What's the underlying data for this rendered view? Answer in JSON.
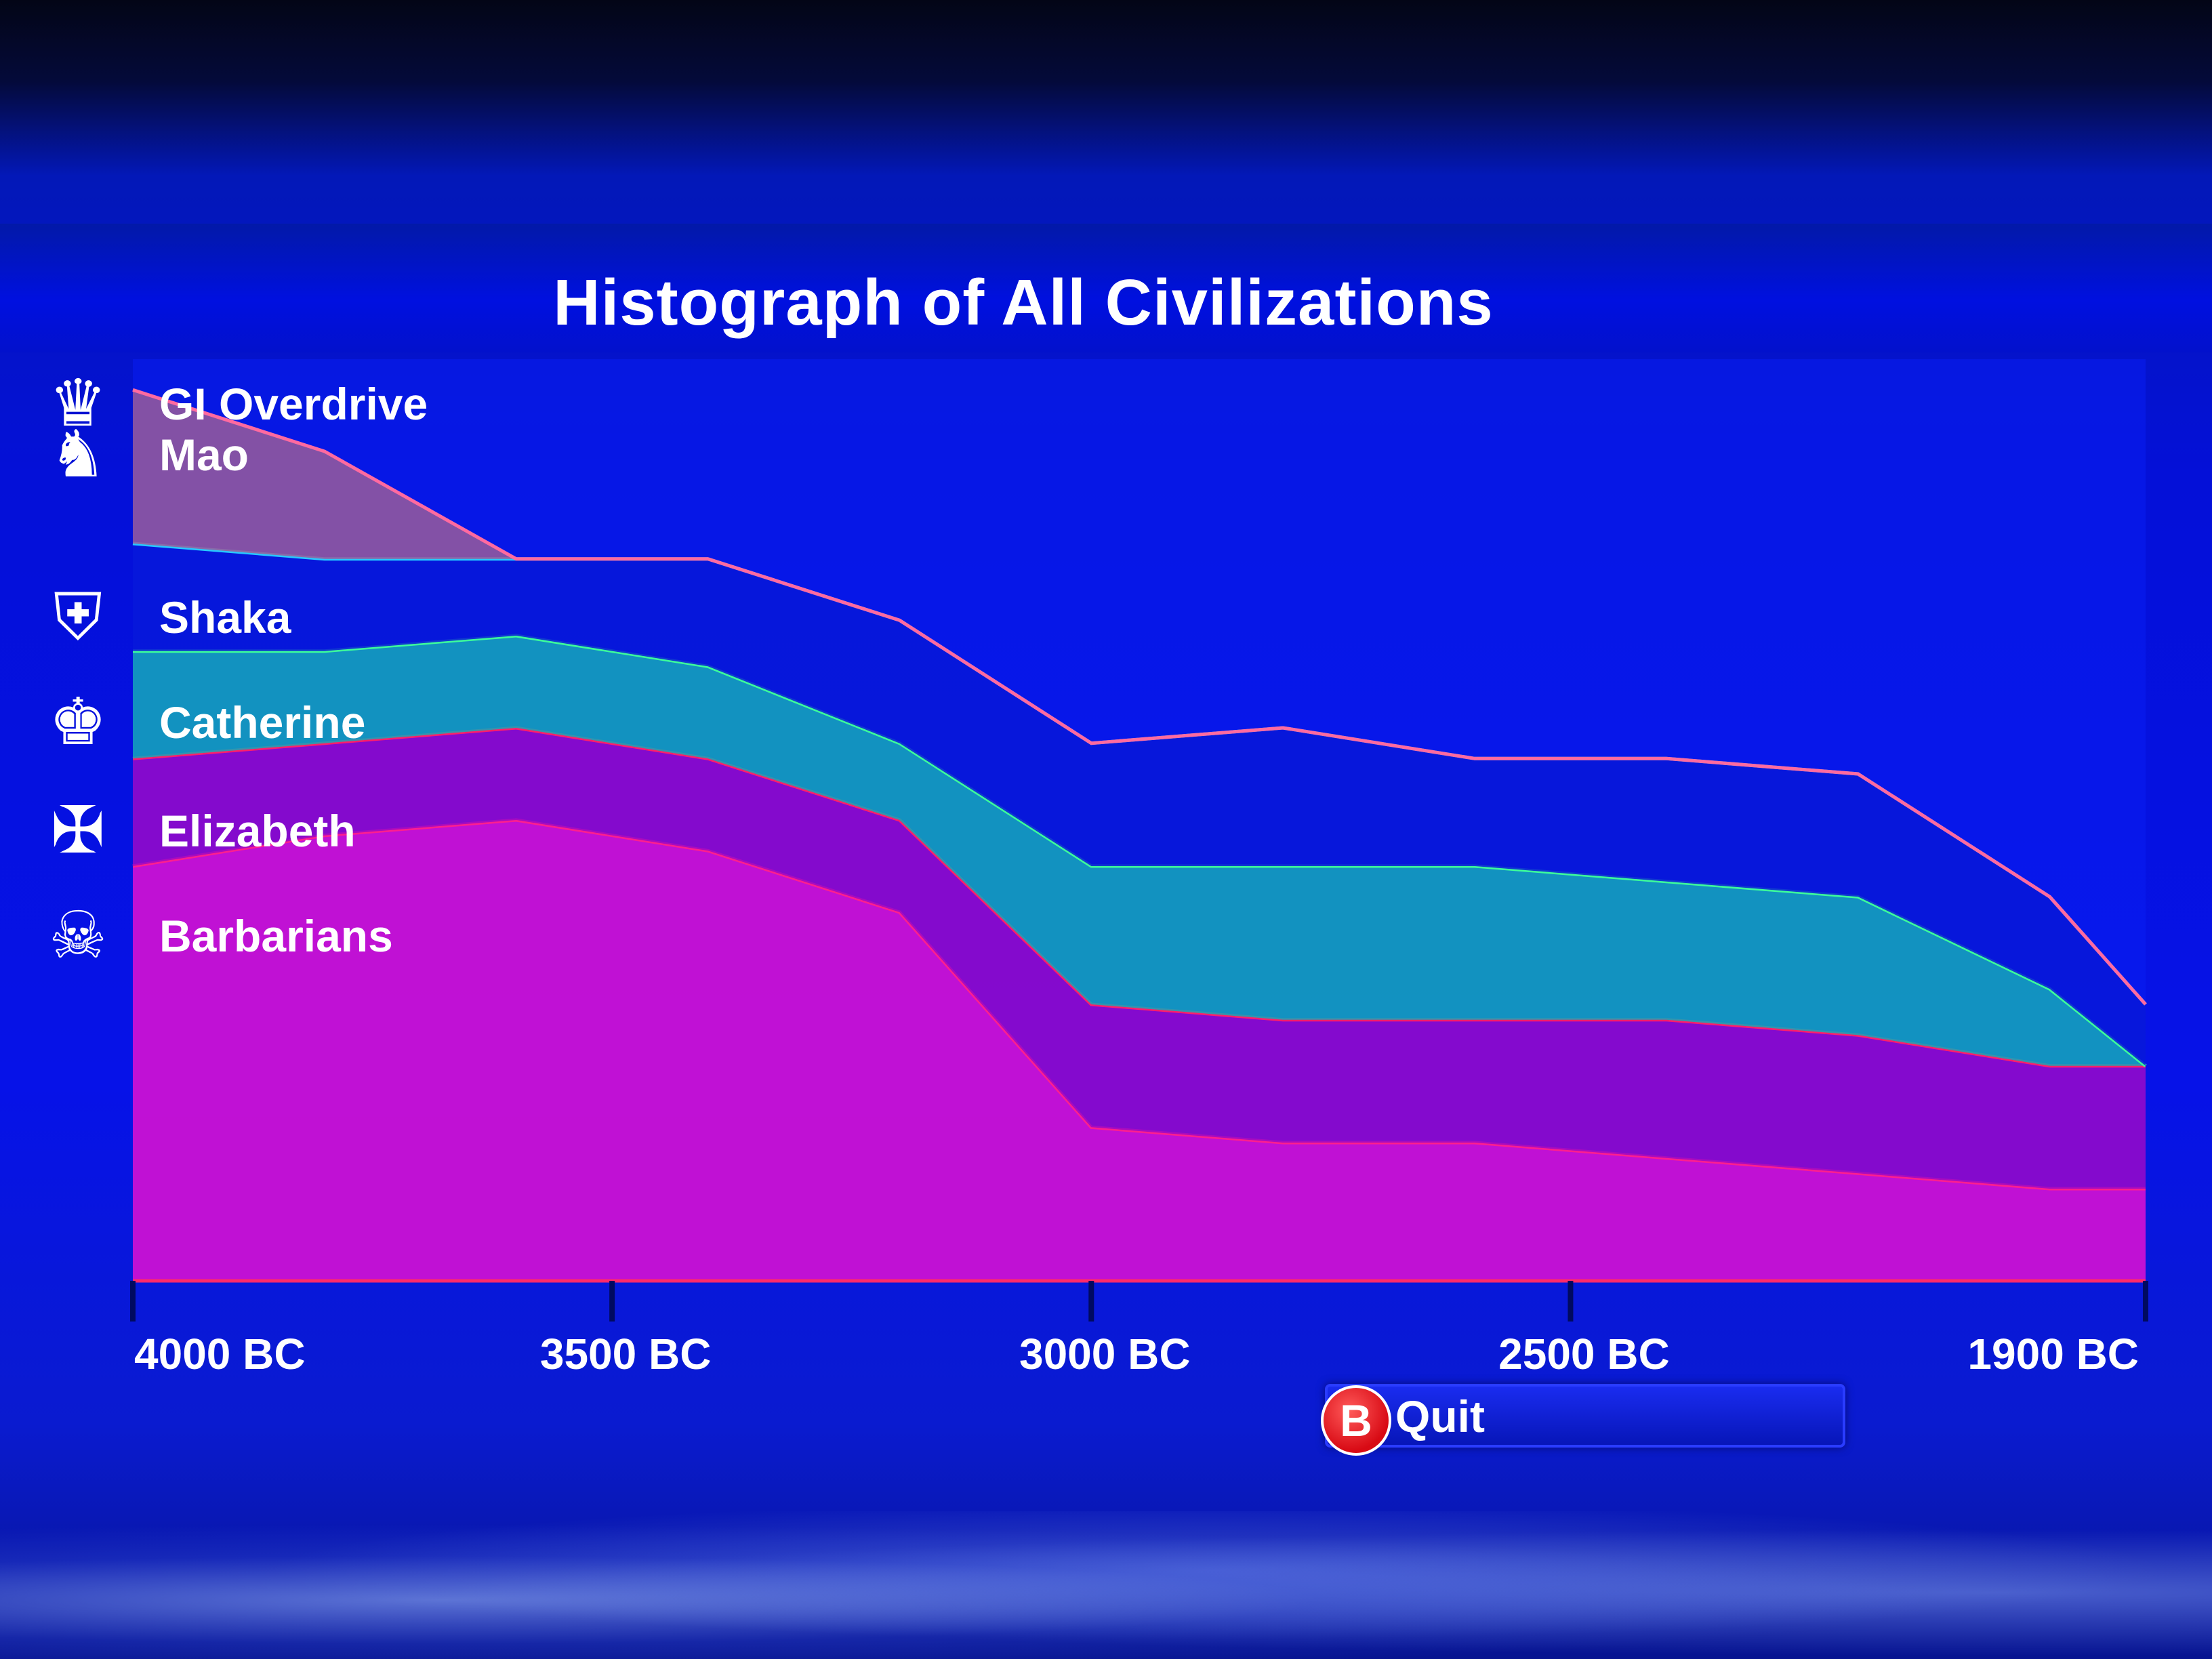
{
  "title": "Histograph of All Civilizations",
  "legend": [
    {
      "label": "GI Overdrive",
      "icon": "eagle-emblem-icon"
    },
    {
      "label": "Mao",
      "icon": "dragon-emblem-icon"
    },
    {
      "label": "Shaka",
      "icon": "shield-emblem-icon"
    },
    {
      "label": "Catherine",
      "icon": "double-eagle-emblem-icon"
    },
    {
      "label": "Elizabeth",
      "icon": "cross-shield-emblem-icon"
    },
    {
      "label": "Barbarians",
      "icon": "skull-emblem-icon"
    }
  ],
  "quit_button": {
    "key": "B",
    "label": "Quit"
  },
  "chart_data": {
    "type": "area",
    "stacked": true,
    "title": "Histograph of All Civilizations",
    "x": [
      -4000,
      -3800,
      -3600,
      -3400,
      -3200,
      -3000,
      -2800,
      -2600,
      -2400,
      -2200,
      -2000,
      -1900
    ],
    "x_tick_labels": [
      "4000 BC",
      "3500 BC",
      "3000 BC",
      "2500 BC",
      "1900 BC"
    ],
    "x_ticks": [
      -4000,
      -3500,
      -3000,
      -2500,
      -1900
    ],
    "series": [
      {
        "name": "Barbarians",
        "color": "#ff1f8e",
        "fill": "#e010d0",
        "values": [
          27,
          29,
          30,
          28,
          24,
          10,
          9,
          9,
          8,
          7,
          6,
          6
        ]
      },
      {
        "name": "Elizabeth",
        "color": "#ff1f6a",
        "fill": "#9a08c8",
        "values": [
          7,
          6,
          6,
          6,
          6,
          8,
          8,
          8,
          9,
          9,
          8,
          8
        ]
      },
      {
        "name": "Catherine",
        "color": "#3dff9a",
        "fill": "#14a8b8",
        "values": [
          7,
          6,
          6,
          6,
          5,
          9,
          10,
          10,
          9,
          9,
          5,
          0
        ]
      },
      {
        "name": "Shaka",
        "color": "#28c8ff",
        "fill": "#0718d8",
        "values": [
          7,
          6,
          5,
          7,
          8,
          8,
          9,
          7,
          8,
          8,
          6,
          4
        ]
      },
      {
        "name": "Mao",
        "color": "#ff6aa0",
        "fill": "#9a5c9a",
        "values": [
          10,
          7,
          0,
          0,
          0,
          0,
          0,
          0,
          0,
          0,
          0,
          0
        ]
      }
    ],
    "ylim": [
      0,
      60
    ],
    "grid": false,
    "legend_position": "left"
  }
}
